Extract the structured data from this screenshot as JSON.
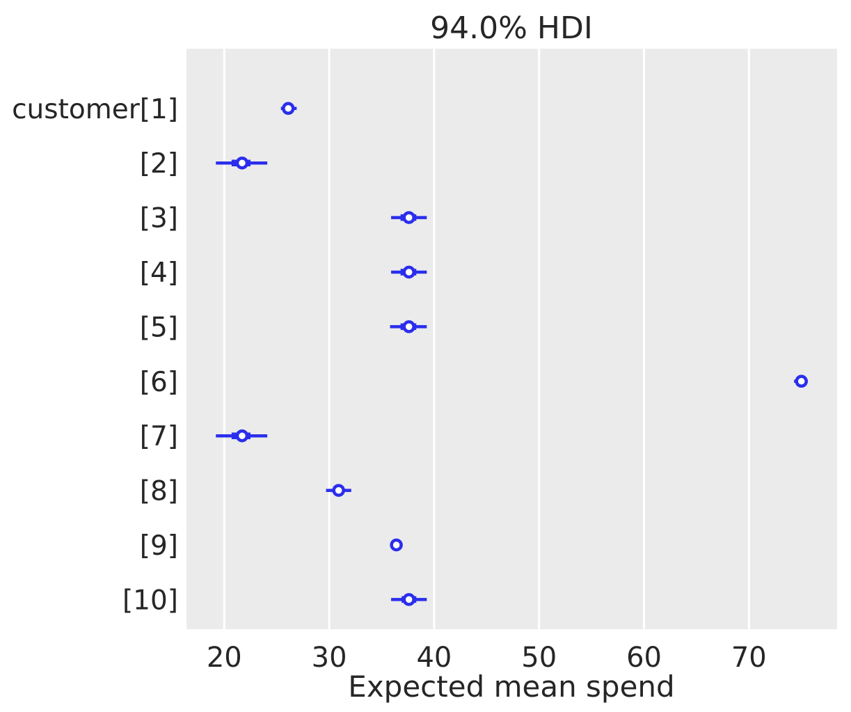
{
  "figure": {
    "background": "#ffffff",
    "plot_bg": "#ebebeb",
    "grid_color": "#ffffff",
    "text_color": "#262626",
    "accent_blue": "#2a2eec",
    "marker_fill": "#ffffff"
  },
  "chart_data": {
    "type": "scatter",
    "variant": "forest-plot-hdi-intervals",
    "title": "94.0% HDI",
    "xlabel": "Expected mean spend",
    "hdi_prob": "94.0%",
    "legend": "none",
    "grid": "vertical-only",
    "x_ticks": [
      20,
      30,
      40,
      50,
      60,
      70
    ],
    "xlim": [
      16.4,
      78.4
    ],
    "rows": [
      {
        "label": "customer[1]",
        "mean": 26.1,
        "hdi": [
          25.4,
          26.9
        ],
        "iqr": [
          25.7,
          26.5
        ]
      },
      {
        "label": "[2]",
        "mean": 21.7,
        "hdi": [
          19.2,
          24.1
        ],
        "iqr": [
          20.7,
          22.5
        ]
      },
      {
        "label": "[3]",
        "mean": 37.6,
        "hdi": [
          35.9,
          39.3
        ],
        "iqr": [
          36.8,
          38.3
        ]
      },
      {
        "label": "[4]",
        "mean": 37.6,
        "hdi": [
          35.9,
          39.3
        ],
        "iqr": [
          36.8,
          38.3
        ]
      },
      {
        "label": "[5]",
        "mean": 37.6,
        "hdi": [
          35.8,
          39.3
        ],
        "iqr": [
          36.8,
          38.3
        ]
      },
      {
        "label": "[6]",
        "mean": 75.0,
        "hdi": [
          74.3,
          75.6
        ],
        "iqr": [
          74.7,
          75.3
        ]
      },
      {
        "label": "[7]",
        "mean": 21.7,
        "hdi": [
          19.2,
          24.1
        ],
        "iqr": [
          20.7,
          22.5
        ]
      },
      {
        "label": "[8]",
        "mean": 30.9,
        "hdi": [
          29.7,
          32.1
        ],
        "iqr": [
          30.4,
          31.4
        ]
      },
      {
        "label": "[9]",
        "mean": 36.4,
        "hdi": [
          36.2,
          36.7
        ],
        "iqr": [
          36.3,
          36.6
        ]
      },
      {
        "label": "[10]",
        "mean": 37.6,
        "hdi": [
          35.9,
          39.3
        ],
        "iqr": [
          36.9,
          38.3
        ]
      }
    ]
  }
}
